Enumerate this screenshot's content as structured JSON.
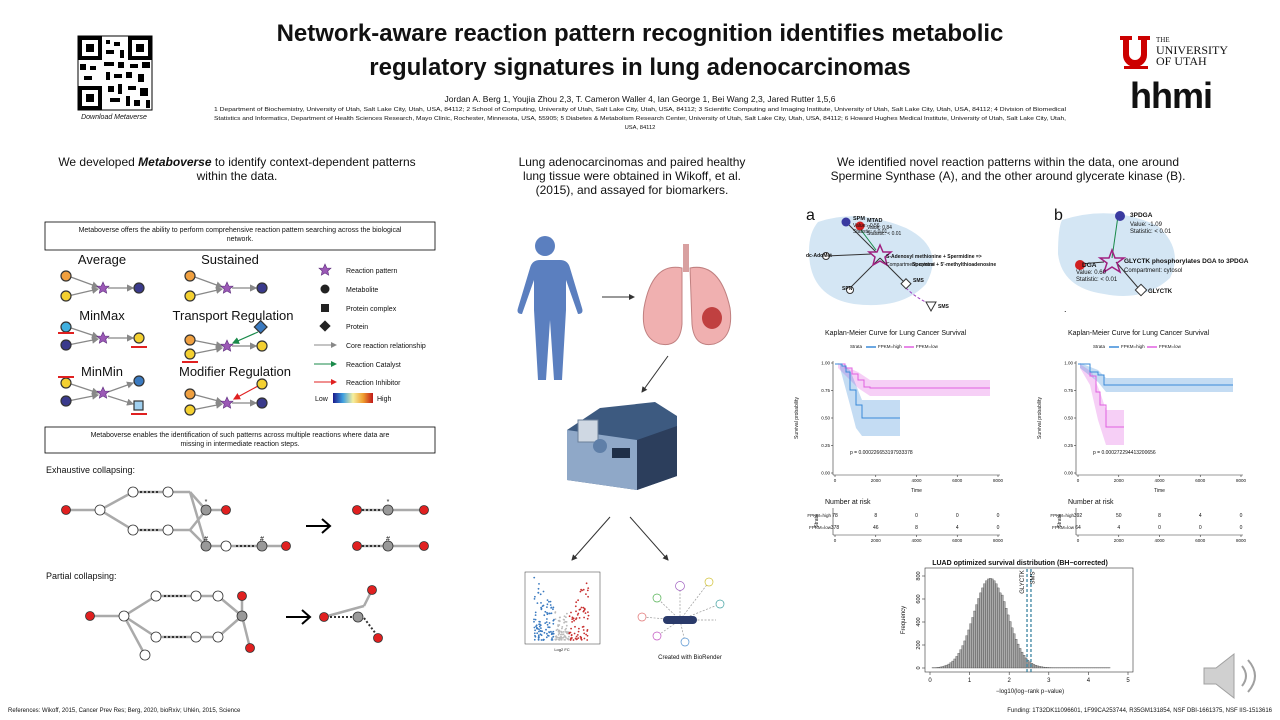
{
  "header": {
    "title_lines": [
      "Network-aware reaction pattern recognition identifies metabolic",
      "regulatory signatures in lung adenocarcinomas"
    ],
    "authors": "Jordan A. Berg 1, Youjia Zhou 2,3, T. Cameron Waller 4, Ian George 1, Bei Wang 2,3, Jared Rutter 1,5,6",
    "affiliations": [
      "1 Department of Biochemistry, University of Utah, Salt Lake City, Utah, USA, 84112; 2 School of Computing, University of Utah, Salt Lake City, Utah, USA, 84112; 3 Scientific Computing and Imaging Institute, University of Utah, Salt Lake City, Utah, USA, 84112; 4 Division of Biomedical",
      "Statistics and Informatics, Department of Health Sciences Research, Mayo Clinic, Rochester, Minnesota, USA, 55905; 5 Diabetes & Metabolism Research Center, University of Utah, Salt Lake City, Utah, USA, 84112; 6 Howard Hughes Medical Institute, University of Utah, Salt Lake City, Utah,",
      "USA, 84112"
    ],
    "qr_caption": "Download Metaverse",
    "logo_utah": [
      "THE",
      "UNIVERSITY",
      "OF UTAH"
    ],
    "logo_hhmi": "hhmi"
  },
  "left": {
    "intro": {
      "before": "We developed ",
      "emph": "Metaboverse",
      "after": " to identify context-dependent patterns",
      "line2": "within the data."
    },
    "box1": [
      "Metaboverse offers the ability to perform comprehensive reaction pattern searching across the biological",
      "network."
    ],
    "patterns": [
      "Average",
      "Sustained",
      "MinMax",
      "Transport Regulation",
      "MinMin",
      "Modifier Regulation"
    ],
    "legend": [
      "Reaction pattern",
      "Metabolite",
      "Protein complex",
      "Protein",
      "Core reaction relationship",
      "Reaction Catalyst",
      "Reaction Inhibitor"
    ],
    "scale": [
      "Low",
      "High"
    ],
    "box2": [
      "Metaboverse enables the identification of such patterns across multiple reactions where data are",
      "missing in intermediate reaction steps."
    ],
    "exhaustive": "Exhaustive collapsing:",
    "partial": "Partial collapsing:",
    "marks": [
      "*",
      "*",
      "#",
      "#",
      "#"
    ]
  },
  "middle": {
    "intro": [
      "Lung adenocarcinomas and paired healthy",
      "lung tissue were obtained in Wikoff, et al.",
      "(2015), and assayed for biomarkers."
    ],
    "volcano_x": "Log2 FC",
    "credit": "Created with BioRender"
  },
  "right": {
    "intro": [
      "We identified novel reaction patterns within the data, one around",
      "Spermine Synthase (A),  and the other around glycerate kinase (B)."
    ],
    "panel_a": {
      "label": "a",
      "texts": [
        "SPM",
        "Value: -0.56",
        "Statistic: < 0.01",
        "MTAD",
        "Value: 0.84",
        "Statistic: < 0.01",
        "dc-AdoMet",
        "S-Adenosyl methionine + Spermidine =>",
        "Compartment: cytosol",
        "Spermine + 5'-methylthioadenosine",
        "SMS",
        "SPN",
        "SMS"
      ]
    },
    "panel_b": {
      "label": "b",
      "texts": [
        "3PDGA",
        "Value: -1.09",
        "Statistic: < 0.01",
        "DGA",
        "Value: 0.60",
        "Statistic: < 0.01",
        "GLYCTK phosphorylates DGA to 3PDGA",
        "Compartment: cytosol",
        "GLYCTK",
        "."
      ]
    },
    "km": [
      {
        "title": "Kaplan-Meier Curve for Lung Cancer Survival",
        "legend_title": "Strata",
        "strata": [
          "FPKM=high",
          "FPKM=low"
        ],
        "ylabel": "Survival probability",
        "xlabel": "Time",
        "p_value": "p = 0.000226653197933378",
        "yticks": [
          {
            "value": 0,
            "label": "0.00"
          },
          {
            "value": 0.25,
            "label": "0.25"
          },
          {
            "value": 0.5,
            "label": "0.50"
          },
          {
            "value": 0.75,
            "label": "0.75"
          },
          {
            "value": 1,
            "label": "1.00"
          }
        ],
        "xticks": [
          0,
          2000,
          4000,
          6000,
          8000
        ],
        "risk_title": "Number at risk",
        "risk_axis": "Strata",
        "risk": [
          [
            78,
            8,
            0,
            0,
            0
          ],
          [
            378,
            46,
            8,
            4,
            0
          ]
        ]
      },
      {
        "title": "Kaplan-Meier Curve for Lung Cancer Survival",
        "legend_title": "Strata",
        "strata": [
          "FPKM=high",
          "FPKM=low"
        ],
        "ylabel": "Survival probability",
        "xlabel": "Time",
        "p_value": "p = 0.000272294413200656",
        "yticks": [
          {
            "value": 0,
            "label": "0.00"
          },
          {
            "value": 0.25,
            "label": "0.25"
          },
          {
            "value": 0.5,
            "label": "0.50"
          },
          {
            "value": 0.75,
            "label": "0.75"
          },
          {
            "value": 1,
            "label": "1.00"
          }
        ],
        "xticks": [
          0,
          2000,
          4000,
          6000,
          8000
        ],
        "risk_title": "Number at risk",
        "risk_axis": "Strata",
        "risk": [
          [
            392,
            50,
            8,
            4,
            0
          ],
          [
            64,
            4,
            0,
            0,
            0
          ]
        ]
      }
    ],
    "histogram": {
      "title": "LUAD optimized survival distribution (BH−corrected)",
      "ylabel": "Frequency",
      "xlabel": "−log10(log−rank p−value)",
      "yticks": [
        0,
        200,
        400,
        600,
        800
      ],
      "xticks": [
        0,
        1,
        2,
        3,
        4,
        5
      ],
      "markers": [
        "GLYCTK",
        "SMS"
      ]
    }
  },
  "footer": {
    "references": "References: Wikoff, 2015, Cancer Prev Res; Berg, 2020, bioRxiv; Uhlén, 2015, Science",
    "funding": "Funding: 1T32DK11096601, 1F99CA253744, R35GM131854, NSF DBI-1661375, NSF IIS-1513616"
  }
}
